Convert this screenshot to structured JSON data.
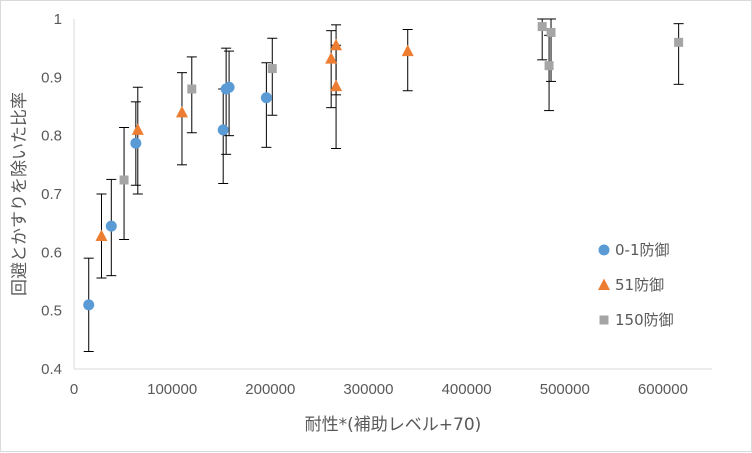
{
  "chart_data": {
    "type": "scatter",
    "title": "",
    "xlabel": "耐性*(補助レベル+70)",
    "ylabel": "回避とかすりを除いた比率",
    "xlim": [
      0,
      650000
    ],
    "ylim": [
      0.4,
      1.0
    ],
    "x_ticks": [
      "0",
      "100000",
      "200000",
      "300000",
      "400000",
      "500000",
      "600000"
    ],
    "y_ticks": [
      "0.4",
      "0.5",
      "0.6",
      "0.7",
      "0.8",
      "0.9",
      "1"
    ],
    "grid": false,
    "legend_position": "right",
    "series": [
      {
        "name": "0-1防御",
        "marker": "circle",
        "color": "#5b9bd5",
        "points": [
          {
            "x": 15000,
            "y": 0.51,
            "lo": 0.43,
            "hi": 0.59
          },
          {
            "x": 38000,
            "y": 0.645,
            "lo": 0.56,
            "hi": 0.725
          },
          {
            "x": 63000,
            "y": 0.787,
            "lo": 0.715,
            "hi": 0.858
          },
          {
            "x": 152000,
            "y": 0.81,
            "lo": 0.718,
            "hi": 0.88
          },
          {
            "x": 155000,
            "y": 0.88,
            "lo": 0.768,
            "hi": 0.95
          },
          {
            "x": 158000,
            "y": 0.883,
            "lo": 0.8,
            "hi": 0.945
          },
          {
            "x": 196000,
            "y": 0.865,
            "lo": 0.78,
            "hi": 0.925
          }
        ]
      },
      {
        "name": "51防御",
        "marker": "triangle",
        "color": "#ed7d31",
        "points": [
          {
            "x": 28000,
            "y": 0.628,
            "lo": 0.556,
            "hi": 0.7
          },
          {
            "x": 65000,
            "y": 0.81,
            "lo": 0.7,
            "hi": 0.883
          },
          {
            "x": 110000,
            "y": 0.84,
            "lo": 0.75,
            "hi": 0.908
          },
          {
            "x": 262000,
            "y": 0.932,
            "lo": 0.848,
            "hi": 0.98
          },
          {
            "x": 267000,
            "y": 0.955,
            "lo": 0.87,
            "hi": 0.99
          },
          {
            "x": 267000,
            "y": 0.885,
            "lo": 0.778,
            "hi": 0.955
          },
          {
            "x": 340000,
            "y": 0.945,
            "lo": 0.877,
            "hi": 0.982
          }
        ]
      },
      {
        "name": "150防御",
        "marker": "square",
        "color": "#a5a5a5",
        "points": [
          {
            "x": 51000,
            "y": 0.724,
            "lo": 0.622,
            "hi": 0.814
          },
          {
            "x": 120000,
            "y": 0.88,
            "lo": 0.805,
            "hi": 0.935
          },
          {
            "x": 202000,
            "y": 0.915,
            "lo": 0.835,
            "hi": 0.967
          },
          {
            "x": 477000,
            "y": 0.987,
            "lo": 0.93,
            "hi": 1.0
          },
          {
            "x": 484000,
            "y": 0.92,
            "lo": 0.843,
            "hi": 0.972
          },
          {
            "x": 486000,
            "y": 0.977,
            "lo": 0.893,
            "hi": 1.0
          },
          {
            "x": 616000,
            "y": 0.96,
            "lo": 0.888,
            "hi": 0.992
          }
        ]
      }
    ]
  }
}
